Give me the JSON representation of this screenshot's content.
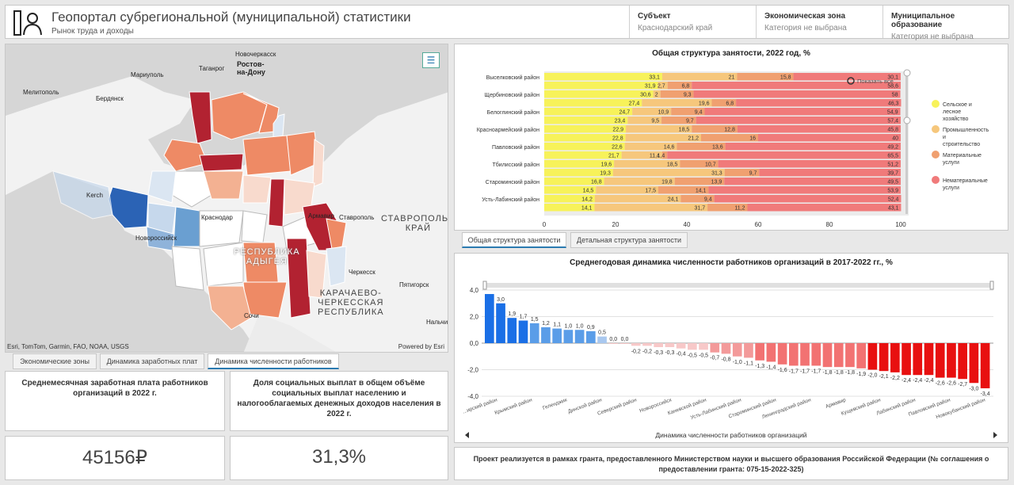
{
  "header": {
    "title": "Геопортал субрегиональной (муниципальной) статистики",
    "subtitle": "Рынок труда и доходы",
    "selectors": [
      {
        "label": "Субъект",
        "value": "Краснодарский край"
      },
      {
        "label": "Экономическая зона",
        "value": "Категория не выбрана"
      },
      {
        "label": "Муниципальное образование",
        "value": "Категория не выбрана"
      }
    ]
  },
  "map": {
    "labels": {
      "rostov": "Ростов-\nна-Дону",
      "novocherkassk": "Новочеркасск",
      "mariupol": "Мариуполь",
      "taganrog": "Таганрог",
      "melitopol": "Мелитополь",
      "berdyansk": "Бердянск",
      "kerch": "Kerch",
      "novorossiysk": "Новороссийск",
      "krasnodar": "Краснодар",
      "armavir": "Армавир",
      "stavropol": "Ставрополь",
      "cherkessk": "Черкесск",
      "pyatigorsk": "Пятигорск",
      "sochi": "Сочи",
      "nalchik": "Нальчик",
      "adygea": "РЕСПУБЛИКА\nАДЫГЕЯ",
      "stavropol_krai": "СТАВРОПОЛЬС\nКРАЙ",
      "kchr": "КАРАЧАЕВО-\nЧЕРКЕССКАЯ\nРЕСПУБЛИКА"
    },
    "attribution": "Esri, TomTom, Garmin, FAO, NOAA, USGS",
    "powered": "Powered by Esri",
    "legend_icon": "list-icon",
    "tabs": [
      "Экономические зоны",
      "Динамика заработных плат",
      "Динамика численности работников"
    ]
  },
  "kpis": [
    {
      "title": "Среднемесячная заработная плата работников организаций в 2022 г.",
      "value": "45156₽"
    },
    {
      "title": "Доля социальных выплат в общем объёме социальных выплат населению и налогооблагаемых денежных доходов населения в 2022 г.",
      "value": "31,3%"
    }
  ],
  "employment_tabs": [
    "Общая структура занятости",
    "Детальная структура занятости"
  ],
  "show_all": "Показать все",
  "footer": "Проект реализуется в рамках гранта, предоставленного Министерством науки и высшего образования Российской Федерации (№ соглашения о предоставлении гранта: 075-15-2022-325)",
  "chart_data": [
    {
      "type": "bar",
      "orientation": "horizontal",
      "stacked": true,
      "title": "Общая структура занятости, 2022 год, %",
      "xlim": [
        0,
        100
      ],
      "xticks": [
        0,
        20,
        40,
        60,
        80,
        100
      ],
      "row_labels": [
        "Выселковский район",
        "",
        "Щербиновский район",
        "",
        "Белоглинский район",
        "",
        "Красноармейский район",
        "",
        "Павловский район",
        "",
        "Тбилисский район",
        "",
        "Староминский район",
        "",
        "Усть-Лабинский район",
        ""
      ],
      "series": [
        {
          "name": "Сельское и лесное хозяйство",
          "color": "#f7f25a",
          "values": [
            33.1,
            31.9,
            30.6,
            27.4,
            24.7,
            23.4,
            22.9,
            22.8,
            22.6,
            21.7,
            19.6,
            19.3,
            16.8,
            14.5,
            14.2,
            14.1
          ]
        },
        {
          "name": "Промышленность и строительство",
          "color": "#f6c77c",
          "values": [
            21,
            2.7,
            2,
            19.6,
            10.9,
            9.5,
            18.5,
            21.2,
            14.6,
            11.4,
            18.5,
            31.3,
            19.8,
            17.5,
            24.1,
            31.7
          ]
        },
        {
          "name": "Материальные услуги",
          "color": "#f0a070",
          "values": [
            15.8,
            6.8,
            9.3,
            6.8,
            9.4,
            9.7,
            12.8,
            16,
            13.6,
            1.4,
            10.7,
            9.7,
            13.9,
            14.1,
            9.4,
            11.2
          ]
        },
        {
          "name": "Нематериальные услуги",
          "color": "#f07a7a",
          "values": [
            30.1,
            58.6,
            58,
            46.3,
            54.9,
            57.4,
            45.8,
            40,
            49.2,
            65.5,
            51.2,
            39.7,
            49.5,
            53.9,
            52.4,
            43.1
          ]
        }
      ]
    },
    {
      "type": "bar",
      "title": "Среднегодовая динамика численности работников организаций в 2017-2022 гг., %",
      "xlabel": "Динамика численности работников организаций",
      "ylim": [
        -4,
        4
      ],
      "yticks": [
        "4,0",
        "2,0",
        "0,0",
        "-2,0",
        "-4,0"
      ],
      "category_labels": [
        "...ирский район",
        "Крымский район",
        "Геленджик",
        "Динской район",
        "Северский район",
        "Новороссийск",
        "Каневской район",
        "Усть-Лабинский район",
        "Староминский район",
        "Ленинградский район",
        "Армавир",
        "Кущевский район",
        "Лабинский район",
        "Павловский район",
        "Новокубанский район"
      ],
      "values": [
        3.7,
        3.0,
        1.9,
        1.7,
        1.5,
        1.2,
        1.1,
        1.0,
        1.0,
        0.9,
        0.5,
        0.0,
        0.0,
        -0.2,
        -0.2,
        -0.3,
        -0.3,
        -0.4,
        -0.5,
        -0.5,
        -0.7,
        -0.8,
        -1.0,
        -1.1,
        -1.3,
        -1.4,
        -1.6,
        -1.7,
        -1.7,
        -1.7,
        -1.8,
        -1.8,
        -1.8,
        -1.9,
        -2.0,
        -2.1,
        -2.2,
        -2.4,
        -2.4,
        -2.4,
        -2.6,
        -2.6,
        -2.7,
        -3.0,
        -3.4
      ],
      "value_labels": [
        "",
        "3,0",
        "1,9",
        "1,7",
        "1,5",
        "1,2",
        "1,1",
        "1,0",
        "1,0",
        "0,9",
        "0,5",
        "0,0",
        "0,0",
        "-0,2",
        "-0,2",
        "-0,3",
        "-0,3",
        "-0,4",
        "-0,5",
        "-0,5",
        "-0,7",
        "-0,8",
        "-1,0",
        "-1,1",
        "-1,3",
        "-1,4",
        "-1,6",
        "-1,7",
        "-1,7",
        "-1,7",
        "-1,8",
        "-1,8",
        "-1,8",
        "-1,9",
        "-2,0",
        "-2,1",
        "-2,2",
        "-2,4",
        "-2,4",
        "-2,4",
        "-2,6",
        "-2,6",
        "-2,7",
        "-3,0",
        "-3,4"
      ]
    }
  ]
}
